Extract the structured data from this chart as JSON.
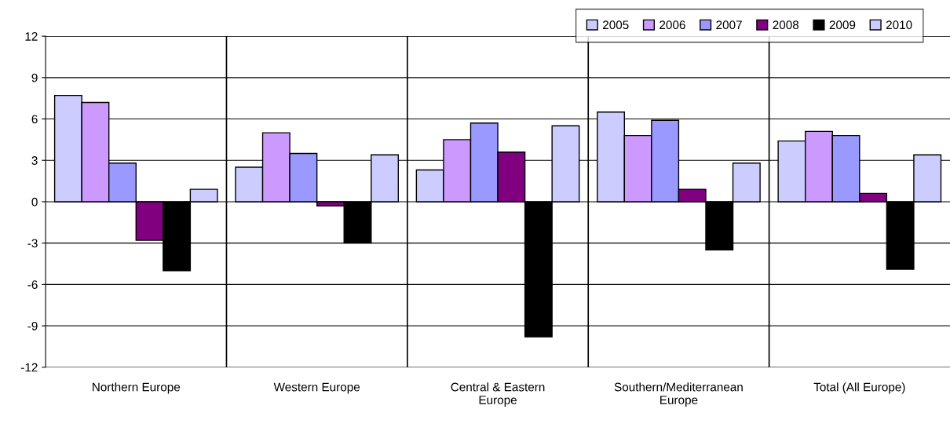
{
  "chart_data": {
    "type": "bar",
    "categories": [
      "Northern Europe",
      "Western Europe",
      "Central & Eastern Europe",
      "Southern/Mediterranean Europe",
      "Total (All Europe)"
    ],
    "series": [
      {
        "name": "2005",
        "color": "#ccccff",
        "values": [
          7.7,
          2.5,
          2.3,
          6.5,
          4.4
        ]
      },
      {
        "name": "2006",
        "color": "#cc99ff",
        "values": [
          7.2,
          5.0,
          4.5,
          4.8,
          5.1
        ]
      },
      {
        "name": "2007",
        "color": "#9999ff",
        "values": [
          2.8,
          3.5,
          5.7,
          5.9,
          4.8
        ]
      },
      {
        "name": "2008",
        "color": "#800080",
        "values": [
          -2.8,
          -0.3,
          3.6,
          0.9,
          0.6
        ]
      },
      {
        "name": "2009",
        "color": "#000000",
        "values": [
          -5.0,
          -3.0,
          -9.8,
          -3.5,
          -4.9
        ]
      },
      {
        "name": "2010",
        "color": "#ccccff",
        "values": [
          0.9,
          3.4,
          5.5,
          2.8,
          3.4
        ]
      }
    ],
    "ylim": [
      -12,
      12
    ],
    "yticks": [
      -12,
      -9,
      -6,
      -3,
      0,
      3,
      6,
      9,
      12
    ],
    "grid": "y",
    "legend": "top right"
  }
}
